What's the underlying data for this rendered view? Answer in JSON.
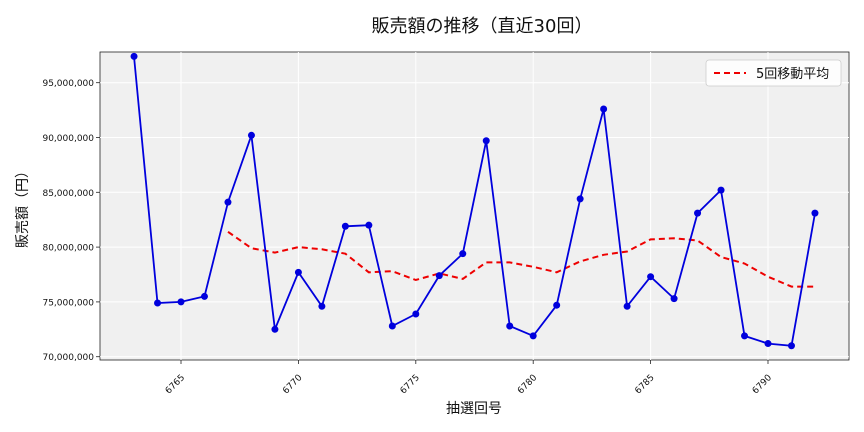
{
  "chart_data": {
    "type": "line",
    "title": "販売額の推移（直近30回）",
    "xlabel": "抽選回号",
    "ylabel": "販売額（円）",
    "xlim": [
      6761.55,
      6793.45
    ],
    "ylim": [
      69700000,
      97800000
    ],
    "x_ticks": [
      6765,
      6770,
      6775,
      6780,
      6785,
      6790
    ],
    "y_ticks": [
      70000000,
      75000000,
      80000000,
      85000000,
      90000000,
      95000000
    ],
    "y_tick_labels": [
      "70,000,000",
      "75,000,000",
      "80,000,000",
      "85,000,000",
      "90,000,000",
      "95,000,000"
    ],
    "grid": true,
    "legend_position": "top-right",
    "series": [
      {
        "label": "",
        "color": "#0000dd",
        "style": "solid-markers",
        "x": [
          6763,
          6764,
          6765,
          6766,
          6767,
          6768,
          6769,
          6770,
          6771,
          6772,
          6773,
          6774,
          6775,
          6776,
          6777,
          6778,
          6779,
          6780,
          6781,
          6782,
          6783,
          6784,
          6785,
          6786,
          6787,
          6788,
          6789,
          6790,
          6791,
          6792
        ],
        "y": [
          97400000,
          74900000,
          75000000,
          75500000,
          84100000,
          90200000,
          72500000,
          77700000,
          74600000,
          81900000,
          82000000,
          72800000,
          73900000,
          77400000,
          79400000,
          89700000,
          72800000,
          71900000,
          74700000,
          84400000,
          92600000,
          74600000,
          77300000,
          75300000,
          83100000,
          85200000,
          71900000,
          71200000,
          71000000,
          83100000
        ]
      },
      {
        "label": "5回移動平均",
        "color": "#ee0000",
        "style": "dashed",
        "x": [
          6767,
          6768,
          6769,
          6770,
          6771,
          6772,
          6773,
          6774,
          6775,
          6776,
          6777,
          6778,
          6779,
          6780,
          6781,
          6782,
          6783,
          6784,
          6785,
          6786,
          6787,
          6788,
          6789,
          6790,
          6791,
          6792
        ],
        "y": [
          81400000,
          79900000,
          79500000,
          80000000,
          79800000,
          79400000,
          77700000,
          77800000,
          77000000,
          77600000,
          77100000,
          78600000,
          78600000,
          78200000,
          77700000,
          78700000,
          79300000,
          79600000,
          80700000,
          80800000,
          80600000,
          79100000,
          78500000,
          77300000,
          76400000,
          76400000
        ]
      }
    ]
  }
}
